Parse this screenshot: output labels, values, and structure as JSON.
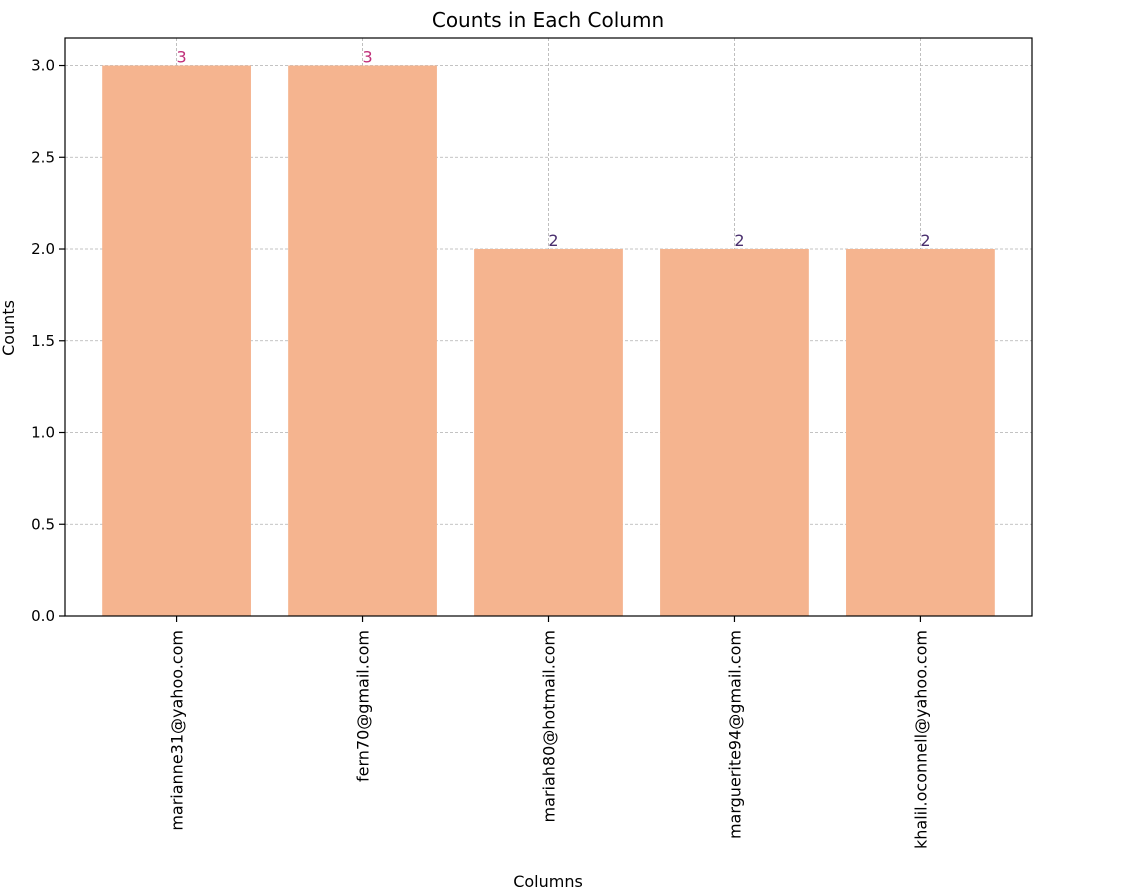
{
  "chart_data": {
    "type": "bar",
    "title": "Counts in Each Column",
    "xlabel": "Columns",
    "ylabel": "Counts",
    "categories": [
      "marianne31@yahoo.com",
      "fern70@gmail.com",
      "mariah80@hotmail.com",
      "marguerite94@gmail.com",
      "khalil.oconnell@yahoo.com"
    ],
    "values": [
      3,
      3,
      2,
      2,
      2
    ],
    "data_labels": [
      "3",
      "3",
      "2",
      "2",
      "2"
    ],
    "ylim": [
      0,
      3.15
    ],
    "yticks": [
      "0.0",
      "0.5",
      "1.0",
      "1.5",
      "2.0",
      "2.5",
      "3.0"
    ],
    "grid": true,
    "colors": {
      "bar": "#f5b48f",
      "label_by_value": {
        "3": "#c0307a",
        "2": "#4a2f6e"
      }
    }
  }
}
